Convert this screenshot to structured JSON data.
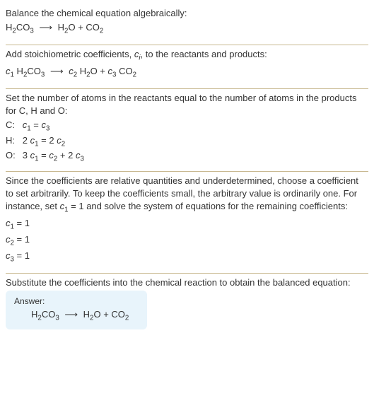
{
  "colors": {
    "text": "#333333",
    "divider": "#c8b890",
    "answer_bg": "#e8f4fb",
    "background": "#ffffff"
  },
  "typography": {
    "body_fontsize": 13,
    "sub_fontsize_em": 0.75,
    "answer_label_fontsize": 12
  },
  "section1": {
    "l1": "Balance the chemical equation algebraically:",
    "eq_lhs": "H",
    "eq_lhs_sub1": "2",
    "eq_lhs2": "CO",
    "eq_lhs_sub2": "3",
    "arrow": "⟶",
    "eq_r1": "H",
    "eq_r1_sub": "2",
    "eq_r2": "O + CO",
    "eq_r2_sub": "2"
  },
  "section2": {
    "l1a": "Add stoichiometric coefficients, ",
    "l1_var": "c",
    "l1_sub": "i",
    "l1b": ", to the reactants and products:",
    "c1": "c",
    "c1_sub": "1",
    "sp1": " H",
    "sp1_sub": "2",
    "sp1b": "CO",
    "sp1b_sub": "3",
    "arrow": "⟶",
    "c2": "c",
    "c2_sub": "2",
    "sp2": " H",
    "sp2_sub": "2",
    "sp2b": "O + ",
    "c3": "c",
    "c3_sub": "3",
    "sp3": " CO",
    "sp3_sub": "2"
  },
  "section3": {
    "l1": "Set the number of atoms in the reactants equal to the number of atoms in the products for C, H and O:",
    "rows": [
      {
        "elem": "C:",
        "lhs_c": "c",
        "lhs_sub": "1",
        "eq": " = ",
        "rhs_c": "c",
        "rhs_sub": "3",
        "full": ""
      },
      {
        "elem": "H:",
        "pre": "2 ",
        "lhs_c": "c",
        "lhs_sub": "1",
        "eq": " = 2 ",
        "rhs_c": "c",
        "rhs_sub": "2",
        "full": ""
      },
      {
        "elem": "O:",
        "pre": "3 ",
        "lhs_c": "c",
        "lhs_sub": "1",
        "eq": " = ",
        "rhs_c": "c",
        "rhs_sub": "2",
        "mid": " + 2 ",
        "rhs2_c": "c",
        "rhs2_sub": "3"
      }
    ]
  },
  "section4": {
    "l1": "Since the coefficients are relative quantities and underdetermined, choose a coefficient to set arbitrarily. To keep the coefficients small, the arbitrary value is ordinarily one. For instance, set ",
    "l1_var": "c",
    "l1_sub": "1",
    "l1b": " = 1 and solve the system of equations for the remaining coefficients:",
    "r1_c": "c",
    "r1_sub": "1",
    "r1_eq": " = 1",
    "r2_c": "c",
    "r2_sub": "2",
    "r2_eq": " = 1",
    "r3_c": "c",
    "r3_sub": "3",
    "r3_eq": " = 1"
  },
  "section5": {
    "l1": "Substitute the coefficients into the chemical reaction to obtain the balanced equation:",
    "answer_label": "Answer:",
    "eq_lhs": "H",
    "eq_lhs_sub1": "2",
    "eq_lhs2": "CO",
    "eq_lhs_sub2": "3",
    "arrow": "⟶",
    "eq_r1": "H",
    "eq_r1_sub": "2",
    "eq_r2": "O + CO",
    "eq_r2_sub": "2"
  }
}
